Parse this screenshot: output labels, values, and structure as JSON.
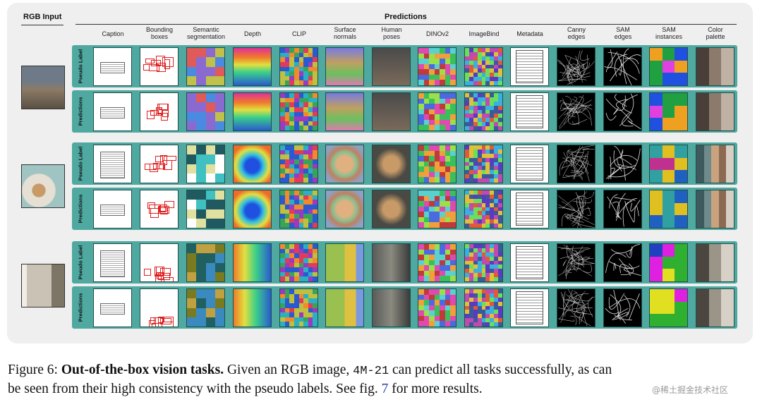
{
  "figure": {
    "rgb_input_title": "RGB Input",
    "predictions_title": "Predictions",
    "columns": [
      {
        "label": "Caption"
      },
      {
        "label": "Bounding\nboxes"
      },
      {
        "label": "Semantic\nsegmentation"
      },
      {
        "label": "Depth"
      },
      {
        "label": "CLIP"
      },
      {
        "label": "Surface\nnormals"
      },
      {
        "label": "Human\nposes"
      },
      {
        "label": "DINOv2"
      },
      {
        "label": "ImageBind"
      },
      {
        "label": "Metadata"
      },
      {
        "label": "Canny\nedges"
      },
      {
        "label": "SAM\nedges"
      },
      {
        "label": "SAM\ninstances"
      },
      {
        "label": "Color\npalette"
      }
    ],
    "row_labels": [
      "Pseudo Label",
      "Predictions",
      "Pseudo Label",
      "Predictions",
      "Pseudo Label",
      "Predictions"
    ],
    "rgb_inputs": [
      {
        "name": "outdoor-people-scene",
        "colors": [
          "#6f7a88",
          "#8b7b66",
          "#5a5044"
        ]
      },
      {
        "name": "food-plate-scene",
        "colors": [
          "#9fc4c2",
          "#c89a68",
          "#e6e0d4"
        ]
      },
      {
        "name": "building-scene",
        "colors": [
          "#c9c2b5",
          "#7d7565",
          "#f0ece6"
        ]
      }
    ],
    "palettes": [
      [
        "#4a3f38",
        "#8c7b6c",
        "#bfb1a4"
      ],
      [
        "#4a3f38",
        "#8c7b6c",
        "#bfb1a4"
      ],
      [
        "#3f5a5e",
        "#6f8a8a",
        "#c9a27e",
        "#8c6a52",
        "#d8cfc4"
      ],
      [
        "#3f5a5e",
        "#6f8a8a",
        "#c9a27e",
        "#8c6a52",
        "#d8cfc4"
      ],
      [
        "#4b4740",
        "#9b9488",
        "#d6d0c6"
      ],
      [
        "#4b4740",
        "#9b9488",
        "#d6d0c6"
      ]
    ]
  },
  "caption": {
    "prefix": "Figure 6: ",
    "bold": "Out-of-the-box vision tasks.",
    "text_part1": " Given an RGB image, ",
    "model": "4M-21",
    "text_part2": " can predict all tasks successfully, as can",
    "line2_part1": "be seen from their high consistency with the pseudo labels. See fig. ",
    "ref": "7",
    "line2_part2": " for more results."
  },
  "watermark": "@稀土掘金技术社区"
}
